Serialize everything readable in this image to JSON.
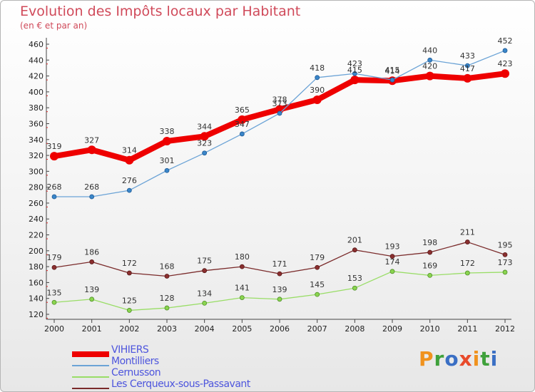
{
  "title": "Evolution des Impôts locaux par Habitant",
  "subtitle": "(en € et par an)",
  "logo": {
    "text": "Proxiti",
    "colors": [
      "#f0921e",
      "#3fa13b",
      "#3a6fc4",
      "#e84a2b",
      "#f0921e",
      "#3fa13b",
      "#3a6fc4"
    ]
  },
  "chart_data": {
    "type": "line",
    "x": [
      "2000",
      "2001",
      "2002",
      "2003",
      "2004",
      "2005",
      "2006",
      "2007",
      "2008",
      "2009",
      "2010",
      "2011",
      "2012"
    ],
    "ylim": [
      120,
      460
    ],
    "yticks": [
      120,
      140,
      160,
      180,
      200,
      220,
      240,
      260,
      280,
      300,
      320,
      340,
      360,
      380,
      400,
      420,
      440,
      460
    ],
    "grid": false,
    "series": [
      {
        "name": "VIHIERS",
        "color": "#ee0000",
        "values": [
          319,
          327,
          314,
          338,
          344,
          365,
          378,
          390,
          415,
          414,
          420,
          417,
          423
        ]
      },
      {
        "name": "Montilliers",
        "color": "#6ba3d6",
        "values": [
          268,
          268,
          276,
          301,
          323,
          347,
          373,
          418,
          423,
          415,
          440,
          433,
          452
        ]
      },
      {
        "name": "Cernusson",
        "color": "#99dd66",
        "values": [
          135,
          139,
          125,
          128,
          134,
          141,
          139,
          145,
          153,
          174,
          169,
          172,
          173
        ]
      },
      {
        "name": "Les Cerqueux-sous-Passavant",
        "color": "#7a2a2a",
        "values": [
          179,
          186,
          172,
          168,
          175,
          180,
          171,
          179,
          201,
          193,
          198,
          211,
          195
        ]
      }
    ]
  }
}
